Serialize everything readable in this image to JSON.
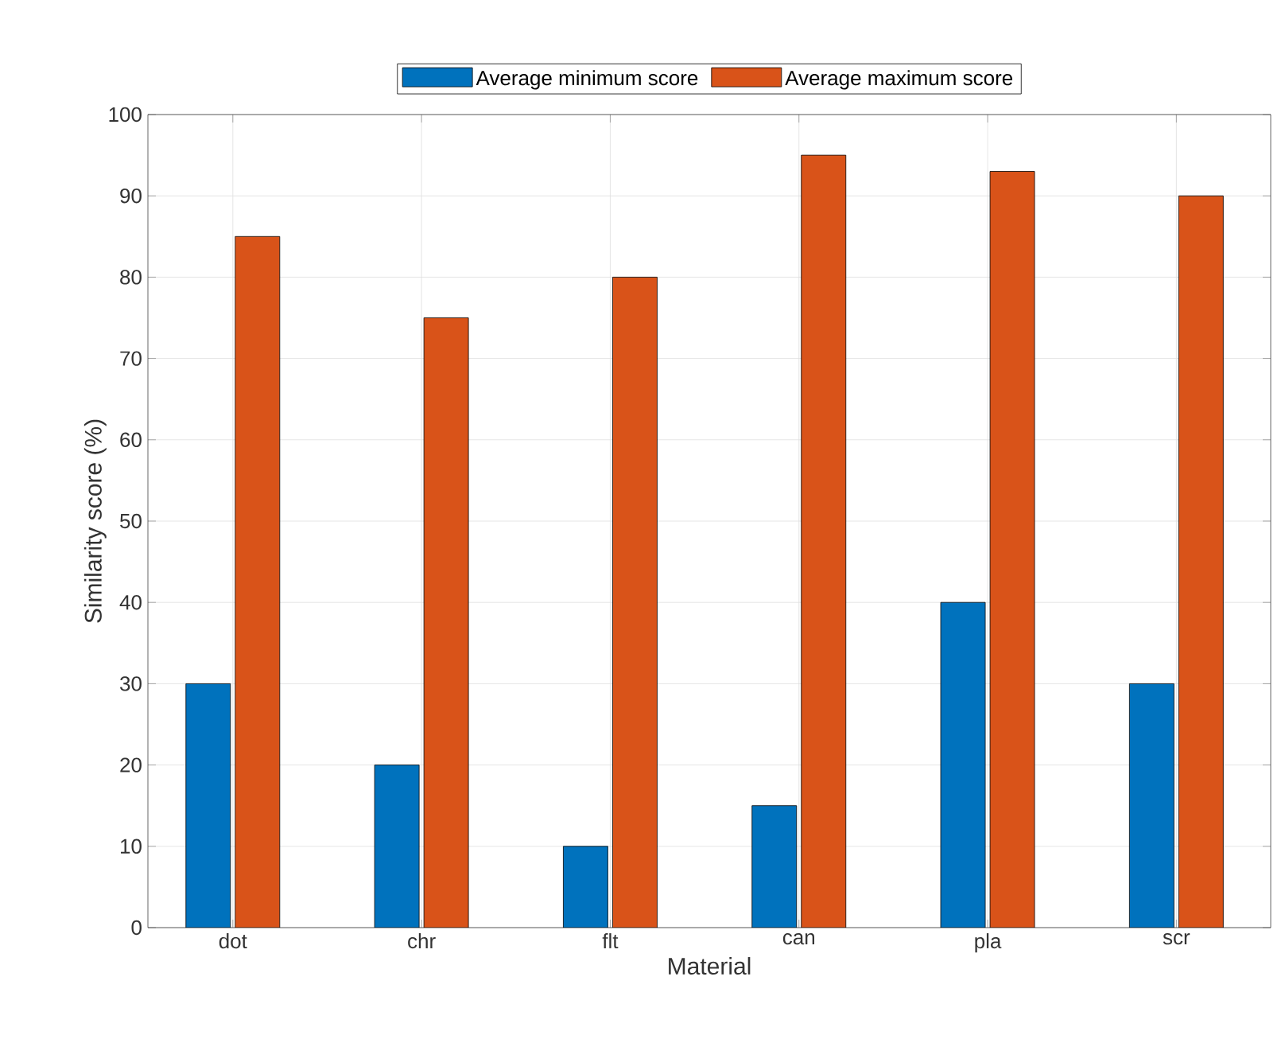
{
  "chart_data": {
    "type": "bar",
    "xlabel": "Material",
    "ylabel": "Similarity score (%)",
    "categories": [
      "dot",
      "chr",
      "flt",
      "can",
      "pla",
      "scr"
    ],
    "series": [
      {
        "name": "Average minimum score",
        "color": "#0072bd",
        "values": [
          30,
          20,
          10,
          15,
          40,
          30
        ]
      },
      {
        "name": "Average maximum score",
        "color": "#d95319",
        "values": [
          85,
          75,
          80,
          95,
          93,
          90
        ]
      }
    ],
    "ylim": [
      0,
      100
    ],
    "yticks": [
      0,
      10,
      20,
      30,
      40,
      50,
      60,
      70,
      80,
      90,
      100
    ],
    "grid": true,
    "legend": "top"
  }
}
